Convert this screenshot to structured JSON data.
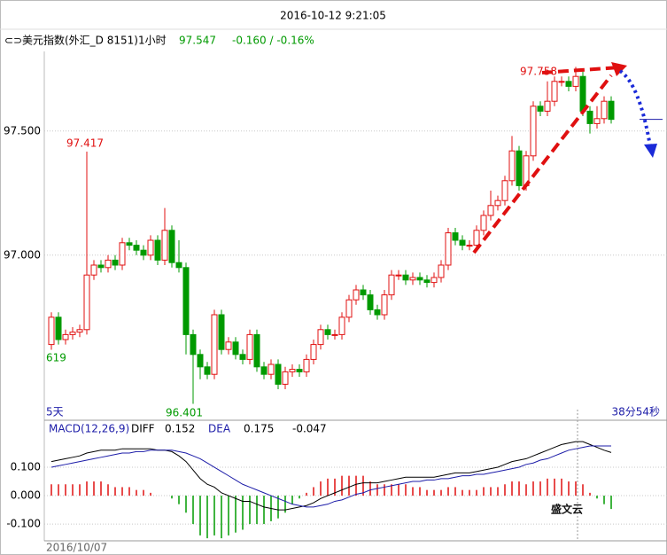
{
  "header": {
    "timestamp": "2016-10-12 9:21:05",
    "instrument": "美元指数(外汇_D 8151)1小时",
    "price": 97.547,
    "change": "-0.160 / -0.16%"
  },
  "chart_data": [
    {
      "type": "candlestick",
      "up_color": "#e01010",
      "down_color": "#009a00",
      "open": [
        96.64,
        96.75,
        96.66,
        96.68,
        96.69,
        96.7,
        96.92,
        96.96,
        96.95,
        96.98,
        96.96,
        97.05,
        97.04,
        97.02,
        97.0,
        97.06,
        96.98,
        97.1,
        96.97,
        96.95,
        96.68,
        96.6,
        96.55,
        96.52,
        96.76,
        96.62,
        96.65,
        96.6,
        96.58,
        96.68,
        96.55,
        96.52,
        96.56,
        96.48,
        96.53,
        96.54,
        96.53,
        96.58,
        96.64,
        96.7,
        96.68,
        96.68,
        96.75,
        96.82,
        96.86,
        96.84,
        96.78,
        96.76,
        96.84,
        96.92,
        96.92,
        96.9,
        96.91,
        96.9,
        96.89,
        96.91,
        96.96,
        97.09,
        97.06,
        97.04,
        97.04,
        97.1,
        97.16,
        97.2,
        97.22,
        97.3,
        97.42,
        97.28,
        97.4,
        97.6,
        97.58,
        97.62,
        97.7,
        97.7,
        97.68,
        97.72,
        97.58,
        97.53,
        97.55,
        97.62
      ],
      "high": [
        96.77,
        96.77,
        96.7,
        96.71,
        96.72,
        97.417,
        96.98,
        96.98,
        97.0,
        97.0,
        97.07,
        97.07,
        97.06,
        97.04,
        97.08,
        97.08,
        97.19,
        97.12,
        97.06,
        96.97,
        96.7,
        96.62,
        96.57,
        96.78,
        96.78,
        96.67,
        96.67,
        96.62,
        96.7,
        96.7,
        96.57,
        96.58,
        96.58,
        96.55,
        96.56,
        96.56,
        96.6,
        96.66,
        96.72,
        96.72,
        96.7,
        96.77,
        96.84,
        96.88,
        96.88,
        96.86,
        96.8,
        96.86,
        96.94,
        96.94,
        96.94,
        96.93,
        96.93,
        96.92,
        96.93,
        96.98,
        97.11,
        97.11,
        97.08,
        97.06,
        97.12,
        97.18,
        97.26,
        97.24,
        97.32,
        97.48,
        97.44,
        97.42,
        97.62,
        97.62,
        97.7,
        97.72,
        97.72,
        97.72,
        97.758,
        97.74,
        97.6,
        97.6,
        97.64,
        97.64
      ],
      "low": [
        96.619,
        96.64,
        96.64,
        96.66,
        96.67,
        96.68,
        96.9,
        96.93,
        96.93,
        96.94,
        96.94,
        97.02,
        97.0,
        96.98,
        96.98,
        96.96,
        96.96,
        96.95,
        96.93,
        96.6,
        96.401,
        96.5,
        96.5,
        96.5,
        96.6,
        96.6,
        96.58,
        96.56,
        96.56,
        96.53,
        96.5,
        96.5,
        96.46,
        96.46,
        96.51,
        96.51,
        96.51,
        96.56,
        96.62,
        96.66,
        96.66,
        96.66,
        96.73,
        96.8,
        96.82,
        96.76,
        96.74,
        96.74,
        96.82,
        96.9,
        96.88,
        96.88,
        96.88,
        96.87,
        96.87,
        96.89,
        96.94,
        97.04,
        97.02,
        97.02,
        97.02,
        97.08,
        97.14,
        97.18,
        97.2,
        97.28,
        97.26,
        97.26,
        97.38,
        97.56,
        97.56,
        97.6,
        97.68,
        97.66,
        97.66,
        97.56,
        97.49,
        97.51,
        97.53,
        97.53
      ],
      "close": [
        96.75,
        96.66,
        96.68,
        96.69,
        96.7,
        96.92,
        96.96,
        96.95,
        96.98,
        96.96,
        97.05,
        97.04,
        97.02,
        97.0,
        97.06,
        96.98,
        97.1,
        96.97,
        96.95,
        96.68,
        96.6,
        96.55,
        96.52,
        96.76,
        96.62,
        96.65,
        96.6,
        96.58,
        96.68,
        96.55,
        96.52,
        96.56,
        96.48,
        96.53,
        96.54,
        96.53,
        96.58,
        96.64,
        96.7,
        96.68,
        96.68,
        96.75,
        96.82,
        96.86,
        96.84,
        96.78,
        96.76,
        96.84,
        96.92,
        96.92,
        96.9,
        96.91,
        96.9,
        96.89,
        96.91,
        96.96,
        97.09,
        97.06,
        97.04,
        97.04,
        97.1,
        97.16,
        97.2,
        97.22,
        97.3,
        97.42,
        97.28,
        97.4,
        97.6,
        97.58,
        97.62,
        97.7,
        97.7,
        97.68,
        97.72,
        97.58,
        97.53,
        97.55,
        97.62,
        97.547
      ],
      "ylim": [
        96.385,
        97.885
      ],
      "yticks": [
        {
          "value": 97.0,
          "label": "97.000"
        },
        {
          "value": 97.5,
          "label": "97.500"
        }
      ],
      "grid": true,
      "annotations": [
        "97.417",
        "619",
        "96.401",
        "97.758"
      ],
      "period_label": "5天",
      "time_label": "38分54秒"
    },
    {
      "type": "macd",
      "title": "MACD(12,26,9)",
      "series": [
        {
          "name": "DIFF",
          "color": "#000000",
          "current": 0.152,
          "values": [
            0.12,
            0.125,
            0.13,
            0.135,
            0.14,
            0.15,
            0.155,
            0.16,
            0.16,
            0.16,
            0.165,
            0.165,
            0.165,
            0.165,
            0.165,
            0.16,
            0.16,
            0.155,
            0.14,
            0.12,
            0.09,
            0.06,
            0.04,
            0.03,
            0.01,
            0.0,
            -0.01,
            -0.02,
            -0.02,
            -0.03,
            -0.04,
            -0.045,
            -0.05,
            -0.05,
            -0.045,
            -0.04,
            -0.035,
            -0.025,
            -0.01,
            0.0,
            0.01,
            0.02,
            0.03,
            0.04,
            0.045,
            0.045,
            0.045,
            0.05,
            0.055,
            0.06,
            0.065,
            0.065,
            0.065,
            0.065,
            0.065,
            0.07,
            0.075,
            0.08,
            0.08,
            0.08,
            0.085,
            0.09,
            0.095,
            0.1,
            0.11,
            0.12,
            0.125,
            0.13,
            0.14,
            0.15,
            0.16,
            0.17,
            0.18,
            0.185,
            0.19,
            0.19,
            0.18,
            0.17,
            0.16,
            0.152
          ]
        },
        {
          "name": "DEA",
          "color": "#1c1ca8",
          "current": 0.175,
          "values": [
            0.1,
            0.105,
            0.11,
            0.115,
            0.12,
            0.125,
            0.13,
            0.135,
            0.14,
            0.145,
            0.15,
            0.15,
            0.155,
            0.155,
            0.16,
            0.16,
            0.16,
            0.16,
            0.155,
            0.15,
            0.14,
            0.13,
            0.115,
            0.1,
            0.085,
            0.07,
            0.055,
            0.04,
            0.03,
            0.02,
            0.01,
            0.0,
            -0.01,
            -0.02,
            -0.03,
            -0.035,
            -0.04,
            -0.04,
            -0.035,
            -0.03,
            -0.02,
            -0.015,
            -0.005,
            0.005,
            0.01,
            0.02,
            0.025,
            0.03,
            0.035,
            0.04,
            0.045,
            0.05,
            0.05,
            0.055,
            0.055,
            0.06,
            0.06,
            0.065,
            0.07,
            0.07,
            0.075,
            0.075,
            0.08,
            0.085,
            0.09,
            0.095,
            0.1,
            0.11,
            0.115,
            0.125,
            0.13,
            0.14,
            0.15,
            0.16,
            0.165,
            0.17,
            0.175,
            0.175,
            0.175,
            0.175
          ]
        }
      ],
      "histogram": {
        "up_color": "#e01010",
        "down_color": "#009a00",
        "current": -0.047,
        "values": [
          0.04,
          0.04,
          0.04,
          0.04,
          0.04,
          0.05,
          0.05,
          0.05,
          0.04,
          0.03,
          0.03,
          0.03,
          0.02,
          0.02,
          0.01,
          0.0,
          0.0,
          -0.01,
          -0.03,
          -0.06,
          -0.1,
          -0.14,
          -0.15,
          -0.14,
          -0.15,
          -0.14,
          -0.13,
          -0.12,
          -0.1,
          -0.1,
          -0.1,
          -0.09,
          -0.08,
          -0.06,
          -0.03,
          -0.01,
          0.01,
          0.03,
          0.05,
          0.06,
          0.06,
          0.07,
          0.07,
          0.07,
          0.07,
          0.05,
          0.04,
          0.04,
          0.04,
          0.04,
          0.04,
          0.03,
          0.03,
          0.02,
          0.02,
          0.02,
          0.03,
          0.03,
          0.02,
          0.02,
          0.02,
          0.03,
          0.03,
          0.03,
          0.04,
          0.05,
          0.05,
          0.04,
          0.05,
          0.05,
          0.06,
          0.06,
          0.06,
          0.05,
          0.05,
          0.04,
          0.01,
          -0.01,
          -0.03,
          -0.047
        ]
      },
      "ylim": [
        -0.159,
        0.253
      ],
      "yticks": [
        {
          "value": 0.1,
          "label": "0.100"
        },
        {
          "value": 0.0,
          "label": "0.000"
        },
        {
          "value": -0.1,
          "label": "-0.100"
        }
      ],
      "grid": true
    }
  ],
  "x_label": "2016/10/07",
  "watermark": "盛文云"
}
